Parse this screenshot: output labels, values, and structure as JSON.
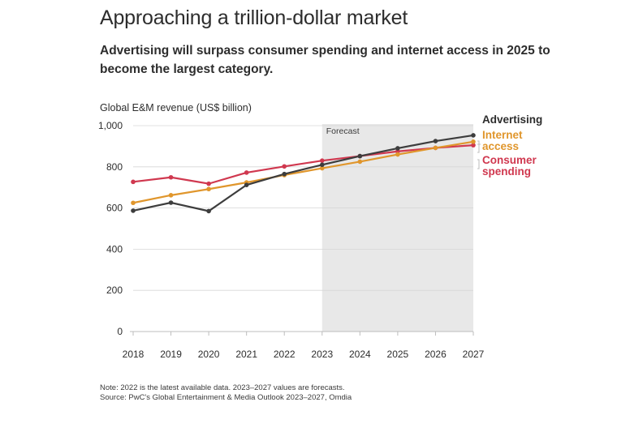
{
  "header": {
    "title": "Approaching a trillion-dollar market",
    "subtitle": "Advertising will surpass consumer spending and internet access in 2025 to become the largest category."
  },
  "footer": {
    "note": "Note: 2022 is the latest available data. 2023–2027 values are forecasts.",
    "source": "Source: PwC's Global Entertainment & Media Outlook 2023–2027, Omdia"
  },
  "chart_data": {
    "type": "line",
    "title": "Approaching a trillion-dollar market",
    "subtitle": "Advertising will surpass consumer spending and internet access in 2025 to become the largest category.",
    "ylabel": "Global E&M revenue (US$ billion)",
    "xlabel": "",
    "ylim": [
      0,
      1000
    ],
    "yticks": [
      0,
      200,
      400,
      600,
      800,
      1000
    ],
    "ytick_labels": [
      "0",
      "200",
      "400",
      "600",
      "800",
      "1,000"
    ],
    "x": [
      "2018",
      "2019",
      "2020",
      "2021",
      "2022",
      "2023",
      "2024",
      "2025",
      "2026",
      "2027"
    ],
    "forecast": {
      "label": "Forecast",
      "from": "2023",
      "to": "2027"
    },
    "grid": true,
    "legend_placement": "right, inline at line ends",
    "series": [
      {
        "name": "Advertising",
        "legend_lines": [
          "Advertising"
        ],
        "color": "#3d3d3d",
        "values": [
          587,
          626,
          585,
          712,
          765,
          810,
          852,
          890,
          925,
          953
        ]
      },
      {
        "name": "Internet access",
        "legend_lines": [
          "Internet",
          "access"
        ],
        "color": "#e0962c",
        "values": [
          625,
          662,
          692,
          724,
          760,
          793,
          825,
          860,
          892,
          922
        ]
      },
      {
        "name": "Consumer spending",
        "legend_lines": [
          "Consumer",
          "spending"
        ],
        "color": "#d0384f",
        "values": [
          727,
          749,
          718,
          772,
          802,
          830,
          852,
          875,
          892,
          905
        ]
      }
    ]
  }
}
